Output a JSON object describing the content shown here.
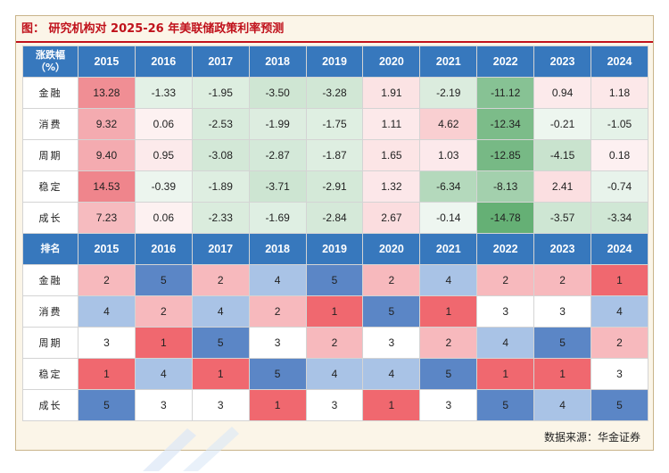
{
  "title": "图：  研究机构对  2025-26  年美联储政策利率预测",
  "source": "数据来源：华金证券",
  "colors": {
    "header_bg": "#3778bd",
    "title_red": "#c0111b",
    "pos": "#e8505a",
    "neg": "#3a9a4e",
    "rank_low": "#e8505a",
    "rank_high": "#3b72b9"
  },
  "chart_data": {
    "type": "table",
    "years": [
      "2015",
      "2016",
      "2017",
      "2018",
      "2019",
      "2020",
      "2021",
      "2022",
      "2023",
      "2024"
    ],
    "change_header": "涨跌幅\n（%）",
    "rank_header": "排名",
    "returns": [
      {
        "label": "金融",
        "values": [
          "13.28",
          "-1.33",
          "-1.95",
          "-3.50",
          "-3.28",
          "1.91",
          "-2.19",
          "-11.12",
          "0.94",
          "1.18"
        ]
      },
      {
        "label": "消费",
        "values": [
          "9.32",
          "0.06",
          "-2.53",
          "-1.99",
          "-1.75",
          "1.11",
          "4.62",
          "-12.34",
          "-0.21",
          "-1.05"
        ]
      },
      {
        "label": "周期",
        "values": [
          "9.40",
          "0.95",
          "-3.08",
          "-2.87",
          "-1.87",
          "1.65",
          "1.03",
          "-12.85",
          "-4.15",
          "0.18"
        ]
      },
      {
        "label": "稳定",
        "values": [
          "14.53",
          "-0.39",
          "-1.89",
          "-3.71",
          "-2.91",
          "1.32",
          "-6.34",
          "-8.13",
          "2.41",
          "-0.74"
        ]
      },
      {
        "label": "成长",
        "values": [
          "7.23",
          "0.06",
          "-2.33",
          "-1.69",
          "-2.84",
          "2.67",
          "-0.14",
          "-14.78",
          "-3.57",
          "-3.34"
        ]
      }
    ],
    "ranks": [
      {
        "label": "金融",
        "values": [
          2,
          5,
          2,
          4,
          5,
          2,
          4,
          2,
          2,
          1
        ]
      },
      {
        "label": "消费",
        "values": [
          4,
          2,
          4,
          2,
          1,
          5,
          1,
          3,
          3,
          4
        ]
      },
      {
        "label": "周期",
        "values": [
          3,
          1,
          5,
          3,
          2,
          3,
          2,
          4,
          5,
          2
        ]
      },
      {
        "label": "稳定",
        "values": [
          1,
          4,
          1,
          5,
          4,
          4,
          5,
          1,
          1,
          3
        ]
      },
      {
        "label": "成长",
        "values": [
          5,
          3,
          3,
          1,
          3,
          1,
          3,
          5,
          4,
          5
        ]
      }
    ]
  }
}
